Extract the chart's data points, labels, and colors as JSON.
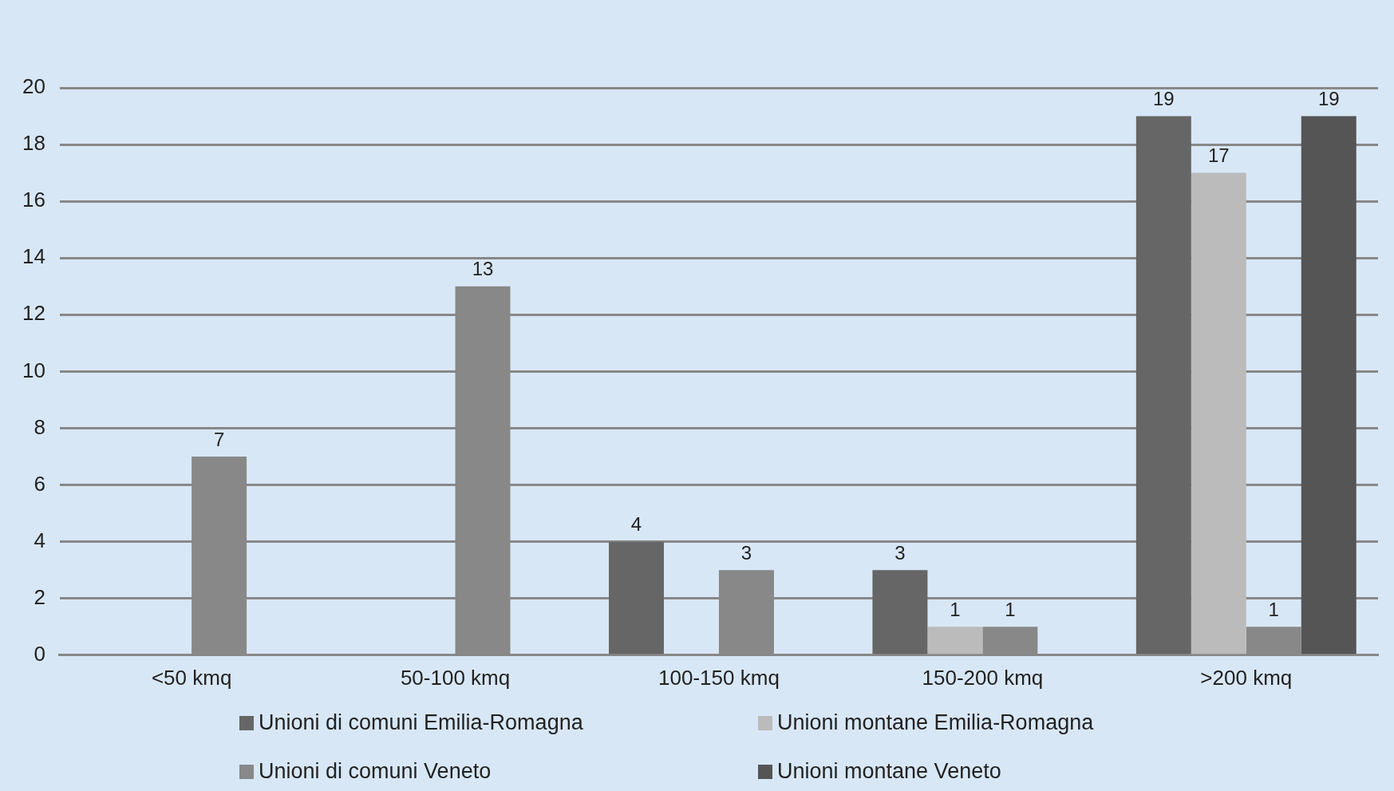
{
  "chart_data": {
    "type": "bar",
    "categories": [
      "<50 kmq",
      "50-100 kmq",
      "100-150 kmq",
      "150-200 kmq",
      ">200 kmq"
    ],
    "series": [
      {
        "name": "Unioni di comuni Emilia-Romagna",
        "color": "#666666",
        "values": [
          null,
          null,
          4,
          3,
          19
        ]
      },
      {
        "name": "Unioni montane Emilia-Romagna",
        "color": "#bbbbbb",
        "values": [
          null,
          null,
          null,
          1,
          17
        ]
      },
      {
        "name": "Unioni di comuni Veneto",
        "color": "#888888",
        "values": [
          7,
          13,
          3,
          1,
          1
        ]
      },
      {
        "name": "Unioni montane Veneto",
        "color": "#555555",
        "values": [
          null,
          null,
          null,
          null,
          19
        ]
      }
    ],
    "ylim": [
      0,
      20
    ],
    "yticks": [
      0,
      2,
      4,
      6,
      8,
      10,
      12,
      14,
      16,
      18,
      20
    ],
    "grid": "y",
    "legend": "bottom",
    "data_labels": true
  }
}
